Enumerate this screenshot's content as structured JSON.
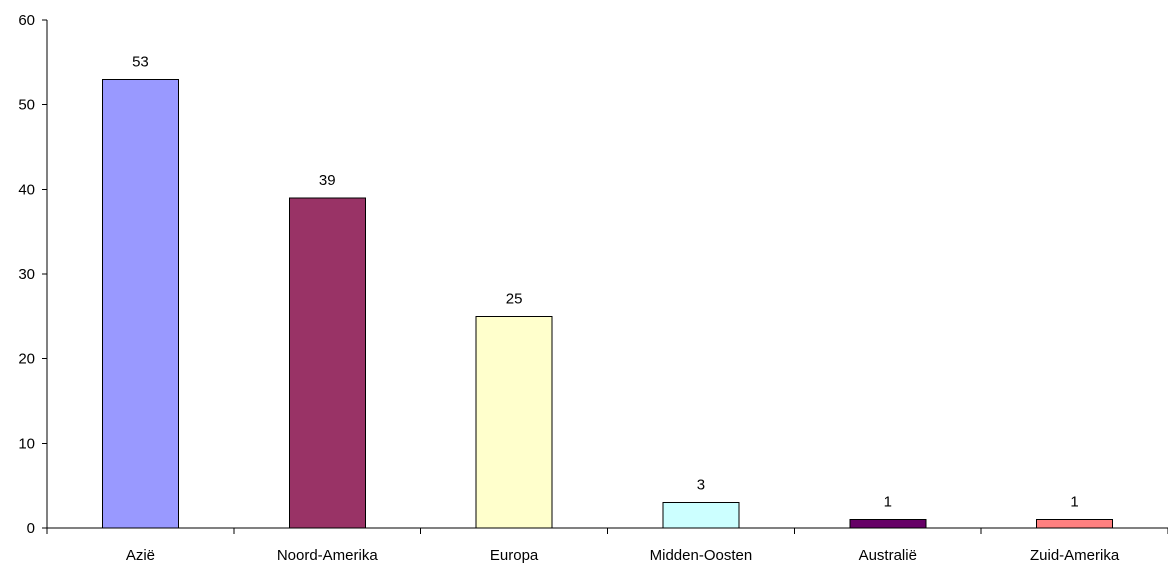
{
  "chart_data": {
    "type": "bar",
    "categories": [
      "Azië",
      "Noord-Amerika",
      "Europa",
      "Midden-Oosten",
      "Australië",
      "Zuid-Amerika"
    ],
    "values": [
      53,
      39,
      25,
      3,
      1,
      1
    ],
    "data_labels": [
      "53",
      "39",
      "25",
      "3",
      "1",
      "1"
    ],
    "bar_colors": [
      "#9999FF",
      "#993366",
      "#FFFFCC",
      "#CCFFFF",
      "#660066",
      "#FF8080"
    ],
    "ylim": [
      0,
      60
    ],
    "yticks": [
      "0",
      "10",
      "20",
      "30",
      "40",
      "50",
      "60"
    ],
    "title": "",
    "xlabel": "",
    "ylabel": "",
    "grid": false,
    "legend": "none"
  }
}
